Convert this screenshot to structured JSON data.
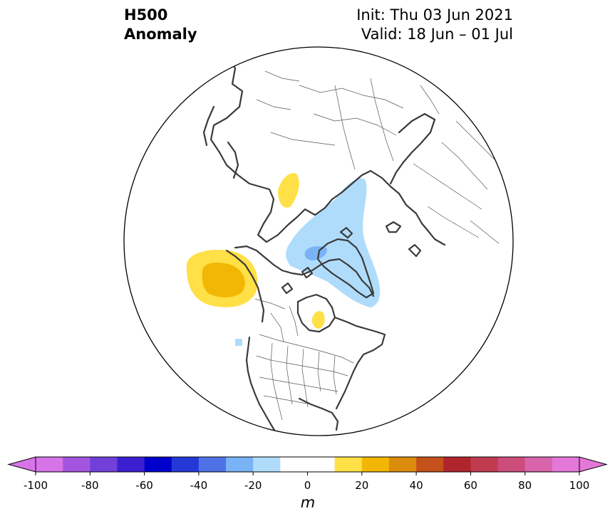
{
  "title": {
    "line1": "H500",
    "line2": "Anomaly"
  },
  "init_label": "Init: Thu 03 Jun 2021",
  "valid_label": "Valid: 18 Jun – 01 Jul",
  "colorbar": {
    "unit": "m",
    "ticks": [
      "-100",
      "-80",
      "-60",
      "-40",
      "-20",
      "0",
      "20",
      "40",
      "60",
      "80",
      "100"
    ],
    "colors": [
      "#d674e8",
      "#a455e0",
      "#7040d8",
      "#3c1fd0",
      "#0000cc",
      "#2438d6",
      "#4e72e6",
      "#7ab3f5",
      "#b0dcfc",
      "#ffffff",
      "#ffffff",
      "#ffe046",
      "#f2b705",
      "#dc8c0c",
      "#c4501a",
      "#b0242c",
      "#c03a50",
      "#cc4c7c",
      "#d864ac",
      "#e478d8"
    ],
    "extend_low_color": "#d674e8",
    "extend_high_color": "#e478d8"
  },
  "map": {
    "projection": "north-polar-stereographic",
    "anomaly_regions": [
      {
        "region": "Gulf of Alaska",
        "sign": "positive",
        "max_bin": "20 to 30"
      },
      {
        "region": "Greenland / Baffin",
        "sign": "negative",
        "max_bin": "-30 to -20"
      },
      {
        "region": "Kara Sea",
        "sign": "positive",
        "max_bin": "10 to 20"
      },
      {
        "region": "Hudson Bay",
        "sign": "positive",
        "max_bin": "10 to 20"
      }
    ]
  }
}
